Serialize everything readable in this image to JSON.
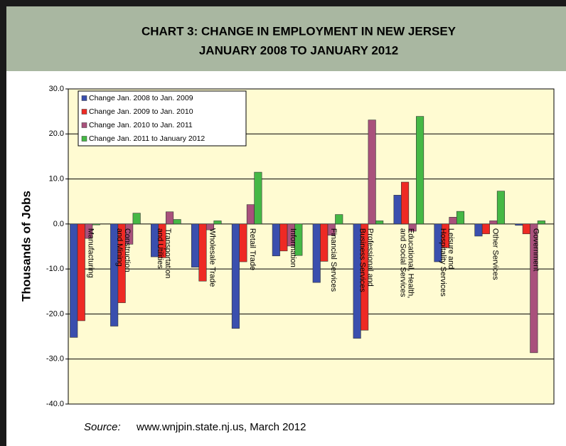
{
  "chart_data": {
    "type": "bar",
    "title": [
      "CHART 3: CHANGE IN EMPLOYMENT IN NEW JERSEY",
      "JANUARY 2008 TO JANUARY 2012"
    ],
    "y_label": "Thousands of Jobs",
    "source_label": "Source:",
    "source": "www.wnjpin.state.nj.us, March 2012",
    "categories": [
      "Manufacturing",
      "Construction\nand Mining",
      "Transportation\nand Utilities",
      "Wholesale Trade",
      "Retail Trade",
      "Information",
      "Financial Services",
      "Professional and\nBusiness Services",
      "Educational, Health,\nand Social Services",
      "Leisure and\nHospitality Services",
      "Other Services",
      "Government"
    ],
    "series": [
      {
        "name": "Change Jan. 2008 to Jan. 2009",
        "color": "#3a4fae",
        "values": [
          -25.2,
          -22.7,
          -7.3,
          -9.6,
          -23.2,
          -7.1,
          -13.0,
          -25.4,
          6.4,
          -8.4,
          -2.7,
          -0.3
        ]
      },
      {
        "name": "Change Jan. 2009 to Jan. 2010",
        "color": "#ee2a24",
        "values": [
          -21.5,
          -17.5,
          -7.5,
          -12.7,
          -8.4,
          -6.0,
          -8.3,
          -23.6,
          9.3,
          -5.3,
          -2.2,
          -2.2
        ]
      },
      {
        "name": "Change Jan. 2010 to Jan. 2011",
        "color": "#a9517c",
        "values": [
          -3.2,
          -4.5,
          2.7,
          -1.3,
          4.3,
          -4.9,
          -2.5,
          23.1,
          -1.6,
          1.5,
          0.7,
          -28.6
        ]
      },
      {
        "name": "Change Jan. 2011 to January 2012",
        "color": "#45b845",
        "values": [
          -0.2,
          2.4,
          1.0,
          0.7,
          11.5,
          -7.0,
          2.1,
          0.7,
          23.9,
          2.8,
          7.3,
          0.7
        ]
      }
    ],
    "ylim": [
      -40,
      30
    ],
    "yticks": [
      {
        "value": -40,
        "label": "-40.0"
      },
      {
        "value": -30,
        "label": "-30.0"
      },
      {
        "value": -20,
        "label": "-20.0"
      },
      {
        "value": -10,
        "label": "-10.0"
      },
      {
        "value": 0,
        "label": "0.0"
      },
      {
        "value": 10,
        "label": "10.0"
      },
      {
        "value": 20,
        "label": "20.0"
      },
      {
        "value": 30,
        "label": "30.0"
      }
    ],
    "grid": true,
    "legend": "upper left"
  }
}
